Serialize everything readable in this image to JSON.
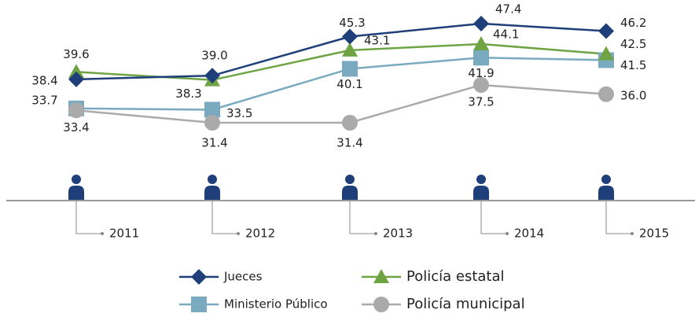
{
  "chart_data": {
    "type": "line",
    "categories": [
      "2011",
      "2012",
      "2013",
      "2014",
      "2015"
    ],
    "series": [
      {
        "name": "Jueces",
        "color": "#1f3f7a",
        "marker": "diamond",
        "values": [
          38.4,
          39.0,
          45.3,
          47.4,
          46.2
        ],
        "value_labels": [
          "38.4",
          "39.0",
          "45.3",
          "47.4",
          "46.2"
        ]
      },
      {
        "name": "Policía estatal",
        "color": "#6ea444",
        "marker": "triangle",
        "values": [
          39.6,
          38.3,
          43.1,
          44.1,
          42.5
        ],
        "value_labels": [
          "39.6",
          "38.3",
          "43.1",
          "44.1",
          "42.5"
        ]
      },
      {
        "name": "Ministerio Público",
        "color": "#7aaac0",
        "marker": "square",
        "values": [
          33.7,
          33.5,
          40.1,
          41.9,
          41.5
        ],
        "value_labels": [
          "33.7",
          "33.5",
          "40.1",
          "41.9",
          "41.5"
        ]
      },
      {
        "name": "Policía municipal",
        "color": "#aaaaab",
        "marker": "circle",
        "values": [
          33.4,
          31.4,
          31.4,
          37.5,
          36.0
        ],
        "value_labels": [
          "33.4",
          "31.4",
          "31.4",
          "37.5",
          "36.0"
        ]
      }
    ]
  }
}
